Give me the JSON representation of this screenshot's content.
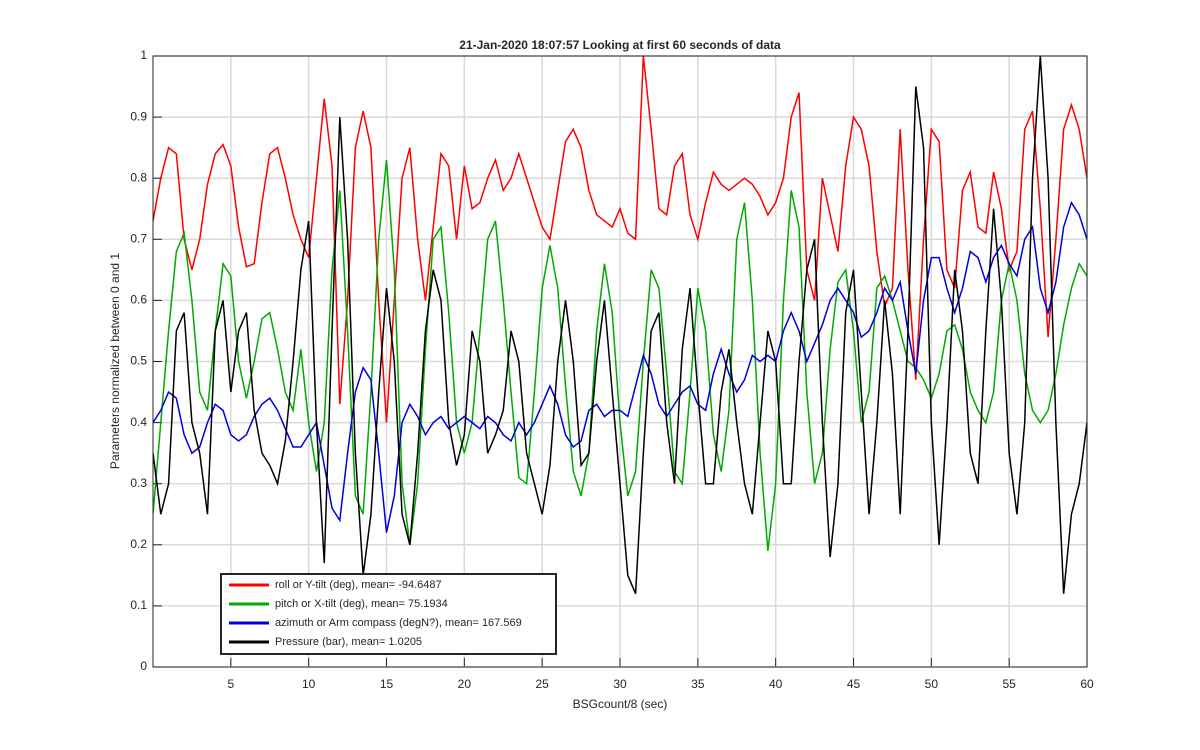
{
  "chart_data": {
    "type": "line",
    "title": "21-Jan-2020 18:07:57 Looking at first 60 seconds of data",
    "xlabel": "BSGcount/8 (sec)",
    "ylabel": "Parameters normalized between 0 and 1",
    "xlim": [
      0,
      60
    ],
    "ylim": [
      0,
      1
    ],
    "xticks": [
      5,
      10,
      15,
      20,
      25,
      30,
      35,
      40,
      45,
      50,
      55,
      60
    ],
    "yticks": [
      0,
      0.1,
      0.2,
      0.3,
      0.4,
      0.5,
      0.6,
      0.7,
      0.8,
      0.9,
      1
    ],
    "grid": true,
    "legend": "southwest",
    "x": [
      0,
      0.5,
      1,
      1.5,
      2,
      2.5,
      3,
      3.5,
      4,
      4.5,
      5,
      5.5,
      6,
      6.5,
      7,
      7.5,
      8,
      8.5,
      9,
      9.5,
      10,
      10.5,
      11,
      11.5,
      12,
      12.5,
      13,
      13.5,
      14,
      14.5,
      15,
      15.5,
      16,
      16.5,
      17,
      17.5,
      18,
      18.5,
      19,
      19.5,
      20,
      20.5,
      21,
      21.5,
      22,
      22.5,
      23,
      23.5,
      24,
      24.5,
      25,
      25.5,
      26,
      26.5,
      27,
      27.5,
      28,
      28.5,
      29,
      29.5,
      30,
      30.5,
      31,
      31.5,
      32,
      32.5,
      33,
      33.5,
      34,
      34.5,
      35,
      35.5,
      36,
      36.5,
      37,
      37.5,
      38,
      38.5,
      39,
      39.5,
      40,
      40.5,
      41,
      41.5,
      42,
      42.5,
      43,
      43.5,
      44,
      44.5,
      45,
      45.5,
      46,
      46.5,
      47,
      47.5,
      48,
      48.5,
      49,
      49.5,
      50,
      50.5,
      51,
      51.5,
      52,
      52.5,
      53,
      53.5,
      54,
      54.5,
      55,
      55.5,
      56,
      56.5,
      57,
      57.5,
      58,
      58.5,
      59,
      59.5,
      60
    ],
    "series": [
      {
        "name": "roll or Y-tilt (deg), mean= -94.6487",
        "color": "#ff0000",
        "values": [
          0.73,
          0.8,
          0.85,
          0.84,
          0.7,
          0.65,
          0.7,
          0.79,
          0.84,
          0.855,
          0.82,
          0.72,
          0.655,
          0.66,
          0.76,
          0.84,
          0.85,
          0.8,
          0.74,
          0.7,
          0.67,
          0.8,
          0.93,
          0.82,
          0.43,
          0.6,
          0.85,
          0.91,
          0.85,
          0.6,
          0.4,
          0.6,
          0.8,
          0.85,
          0.7,
          0.6,
          0.72,
          0.84,
          0.82,
          0.7,
          0.82,
          0.75,
          0.76,
          0.8,
          0.83,
          0.78,
          0.8,
          0.84,
          0.8,
          0.76,
          0.72,
          0.7,
          0.78,
          0.86,
          0.88,
          0.85,
          0.78,
          0.74,
          0.73,
          0.72,
          0.75,
          0.71,
          0.7,
          1.0,
          0.88,
          0.75,
          0.74,
          0.82,
          0.84,
          0.74,
          0.7,
          0.76,
          0.81,
          0.79,
          0.78,
          0.79,
          0.8,
          0.79,
          0.77,
          0.74,
          0.76,
          0.8,
          0.9,
          0.94,
          0.65,
          0.6,
          0.8,
          0.74,
          0.68,
          0.82,
          0.9,
          0.88,
          0.82,
          0.68,
          0.59,
          0.62,
          0.88,
          0.65,
          0.47,
          0.7,
          0.88,
          0.86,
          0.65,
          0.62,
          0.78,
          0.81,
          0.72,
          0.71,
          0.81,
          0.75,
          0.65,
          0.68,
          0.88,
          0.91,
          0.75,
          0.54,
          0.7,
          0.88,
          0.92,
          0.88,
          0.8
        ]
      },
      {
        "name": "pitch or X-tilt (deg), mean= 75.1934",
        "color": "#00aa00",
        "values": [
          0.25,
          0.4,
          0.55,
          0.68,
          0.71,
          0.6,
          0.45,
          0.42,
          0.55,
          0.66,
          0.64,
          0.5,
          0.44,
          0.5,
          0.57,
          0.58,
          0.52,
          0.45,
          0.42,
          0.52,
          0.4,
          0.32,
          0.4,
          0.65,
          0.78,
          0.55,
          0.28,
          0.25,
          0.45,
          0.7,
          0.83,
          0.65,
          0.3,
          0.2,
          0.3,
          0.52,
          0.7,
          0.72,
          0.58,
          0.4,
          0.35,
          0.4,
          0.55,
          0.7,
          0.73,
          0.6,
          0.45,
          0.31,
          0.3,
          0.45,
          0.62,
          0.69,
          0.62,
          0.46,
          0.32,
          0.28,
          0.35,
          0.55,
          0.66,
          0.58,
          0.4,
          0.28,
          0.32,
          0.5,
          0.65,
          0.62,
          0.48,
          0.32,
          0.3,
          0.45,
          0.62,
          0.55,
          0.38,
          0.32,
          0.42,
          0.7,
          0.76,
          0.6,
          0.35,
          0.19,
          0.3,
          0.6,
          0.78,
          0.72,
          0.45,
          0.3,
          0.35,
          0.52,
          0.63,
          0.65,
          0.55,
          0.4,
          0.45,
          0.62,
          0.64,
          0.6,
          0.55,
          0.5,
          0.49,
          0.47,
          0.44,
          0.48,
          0.55,
          0.56,
          0.52,
          0.45,
          0.42,
          0.4,
          0.45,
          0.6,
          0.66,
          0.6,
          0.48,
          0.42,
          0.4,
          0.42,
          0.48,
          0.56,
          0.62,
          0.66,
          0.64
        ]
      },
      {
        "name": "azimuth or Arm compass (degN?), mean= 167.569",
        "color": "#0000dd",
        "values": [
          0.4,
          0.42,
          0.45,
          0.44,
          0.38,
          0.35,
          0.36,
          0.4,
          0.43,
          0.42,
          0.38,
          0.37,
          0.38,
          0.41,
          0.43,
          0.44,
          0.42,
          0.39,
          0.36,
          0.36,
          0.38,
          0.4,
          0.33,
          0.26,
          0.24,
          0.35,
          0.45,
          0.49,
          0.47,
          0.35,
          0.22,
          0.28,
          0.4,
          0.43,
          0.41,
          0.38,
          0.4,
          0.41,
          0.39,
          0.4,
          0.41,
          0.4,
          0.39,
          0.41,
          0.4,
          0.38,
          0.37,
          0.4,
          0.38,
          0.4,
          0.43,
          0.46,
          0.43,
          0.38,
          0.36,
          0.37,
          0.42,
          0.43,
          0.41,
          0.42,
          0.42,
          0.41,
          0.46,
          0.51,
          0.48,
          0.43,
          0.41,
          0.43,
          0.45,
          0.46,
          0.43,
          0.42,
          0.48,
          0.52,
          0.48,
          0.45,
          0.47,
          0.51,
          0.5,
          0.51,
          0.5,
          0.55,
          0.58,
          0.55,
          0.5,
          0.53,
          0.56,
          0.6,
          0.62,
          0.6,
          0.58,
          0.54,
          0.55,
          0.58,
          0.62,
          0.6,
          0.63,
          0.55,
          0.48,
          0.6,
          0.67,
          0.67,
          0.62,
          0.58,
          0.62,
          0.68,
          0.67,
          0.63,
          0.67,
          0.69,
          0.66,
          0.64,
          0.7,
          0.72,
          0.62,
          0.58,
          0.63,
          0.72,
          0.76,
          0.74,
          0.7
        ]
      },
      {
        "name": "Pressure (bar), mean= 1.0205",
        "color": "#000000",
        "values": [
          0.35,
          0.25,
          0.3,
          0.55,
          0.58,
          0.4,
          0.35,
          0.25,
          0.55,
          0.6,
          0.45,
          0.55,
          0.58,
          0.42,
          0.35,
          0.33,
          0.3,
          0.37,
          0.5,
          0.65,
          0.73,
          0.4,
          0.17,
          0.55,
          0.9,
          0.7,
          0.35,
          0.15,
          0.25,
          0.45,
          0.62,
          0.5,
          0.25,
          0.2,
          0.35,
          0.55,
          0.65,
          0.6,
          0.4,
          0.33,
          0.38,
          0.55,
          0.5,
          0.35,
          0.38,
          0.42,
          0.55,
          0.5,
          0.35,
          0.3,
          0.25,
          0.33,
          0.5,
          0.6,
          0.5,
          0.33,
          0.35,
          0.5,
          0.6,
          0.45,
          0.3,
          0.15,
          0.12,
          0.35,
          0.55,
          0.58,
          0.4,
          0.3,
          0.52,
          0.62,
          0.45,
          0.3,
          0.3,
          0.45,
          0.52,
          0.4,
          0.3,
          0.25,
          0.4,
          0.55,
          0.5,
          0.3,
          0.3,
          0.5,
          0.65,
          0.7,
          0.4,
          0.18,
          0.3,
          0.58,
          0.65,
          0.45,
          0.25,
          0.4,
          0.6,
          0.48,
          0.25,
          0.55,
          0.95,
          0.85,
          0.4,
          0.2,
          0.4,
          0.65,
          0.55,
          0.35,
          0.3,
          0.55,
          0.75,
          0.6,
          0.35,
          0.25,
          0.4,
          0.8,
          1.0,
          0.8,
          0.4,
          0.12,
          0.25,
          0.3,
          0.4
        ]
      }
    ]
  }
}
